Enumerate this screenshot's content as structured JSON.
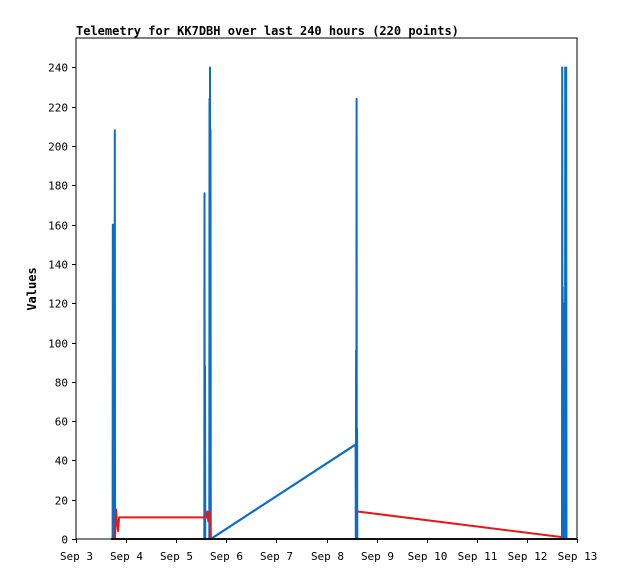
{
  "chart_data": {
    "type": "line",
    "title": "Telemetry for KK7DBH over last 240 hours (220 points)",
    "ylabel": "Values",
    "xlabel": "",
    "ylim": [
      0,
      255
    ],
    "xlim": [
      3.0,
      13.0
    ],
    "yticks": [
      0,
      20,
      40,
      60,
      80,
      100,
      120,
      140,
      160,
      180,
      200,
      220,
      240
    ],
    "xticks": [
      {
        "label": "Sep 3",
        "x": 3
      },
      {
        "label": "Sep 4",
        "x": 4
      },
      {
        "label": "Sep 5",
        "x": 5
      },
      {
        "label": "Sep 6",
        "x": 6
      },
      {
        "label": "Sep 7",
        "x": 7
      },
      {
        "label": "Sep 8",
        "x": 8
      },
      {
        "label": "Sep 9",
        "x": 9
      },
      {
        "label": "Sep 10",
        "x": 10
      },
      {
        "label": "Sep 11",
        "x": 11
      },
      {
        "label": "Sep 12",
        "x": 12
      },
      {
        "label": "Sep 13",
        "x": 13
      }
    ],
    "grid": false,
    "series": [
      {
        "color": "#0c6dc4",
        "points": [
          [
            3.73,
            0
          ],
          [
            3.735,
            160
          ],
          [
            3.74,
            0
          ],
          [
            3.745,
            112
          ],
          [
            3.75,
            0
          ],
          [
            3.755,
            32
          ],
          [
            3.76,
            0
          ],
          [
            3.77,
            0
          ],
          [
            3.775,
            208
          ],
          [
            3.78,
            0
          ],
          [
            5.56,
            0
          ],
          [
            5.565,
            176
          ],
          [
            5.57,
            0
          ],
          [
            5.575,
            88
          ],
          [
            5.58,
            0
          ],
          [
            5.66,
            0
          ],
          [
            5.665,
            224
          ],
          [
            5.67,
            0
          ],
          [
            5.675,
            240
          ],
          [
            5.68,
            0
          ],
          [
            5.685,
            208
          ],
          [
            5.69,
            0
          ],
          [
            8.58,
            48
          ],
          [
            8.585,
            0
          ],
          [
            8.59,
            96
          ],
          [
            8.595,
            0
          ],
          [
            8.6,
            224
          ],
          [
            8.605,
            0
          ],
          [
            8.61,
            56
          ],
          [
            8.615,
            0
          ],
          [
            12.7,
            0
          ],
          [
            12.705,
            240
          ],
          [
            12.71,
            0
          ],
          [
            12.715,
            128
          ],
          [
            12.72,
            0
          ],
          [
            12.725,
            0
          ],
          [
            12.75,
            0
          ],
          [
            12.755,
            120
          ],
          [
            12.76,
            0
          ],
          [
            12.765,
            240
          ],
          [
            12.77,
            0
          ],
          [
            12.775,
            224
          ],
          [
            12.78,
            0
          ],
          [
            12.785,
            240
          ],
          [
            12.79,
            0
          ]
        ]
      },
      {
        "color": "#e31a1c",
        "points": [
          [
            3.77,
            0
          ],
          [
            3.78,
            3
          ],
          [
            3.8,
            15
          ],
          [
            3.82,
            8
          ],
          [
            3.84,
            4
          ],
          [
            3.86,
            11
          ],
          [
            5.6,
            11
          ],
          [
            5.62,
            14
          ],
          [
            5.64,
            9
          ],
          [
            5.66,
            14
          ],
          [
            5.67,
            9
          ],
          [
            5.68,
            0
          ]
        ]
      },
      {
        "color": "#e31a1c",
        "points": [
          [
            8.62,
            14
          ],
          [
            12.68,
            1
          ]
        ]
      },
      {
        "color": "#0c6dc4",
        "points": [
          [
            5.69,
            0
          ],
          [
            8.57,
            48
          ]
        ]
      },
      {
        "color": "#111111",
        "points": [
          [
            3.7,
            0
          ],
          [
            13.0,
            0
          ]
        ]
      }
    ]
  }
}
